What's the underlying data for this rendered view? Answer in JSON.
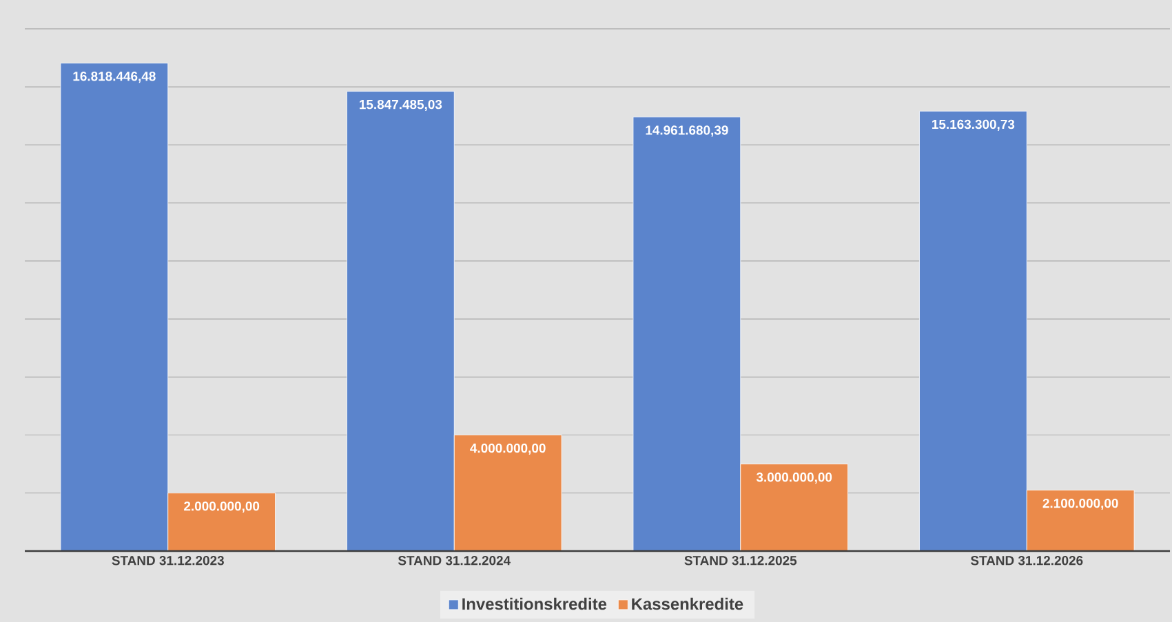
{
  "chart_data": {
    "type": "bar",
    "categories": [
      "STAND 31.12.2023",
      "STAND 31.12.2024",
      "STAND 31.12.2025",
      "STAND 31.12.2026"
    ],
    "series": [
      {
        "name": "Investitionskredite",
        "color": "#5b84cc",
        "values": [
          16818446.48,
          15847485.03,
          14961680.39,
          15163300.73
        ],
        "value_labels": [
          "16.818.446,48",
          "15.847.485,03",
          "14.961.680,39",
          "15.163.300,73"
        ]
      },
      {
        "name": "Kassenkredite",
        "color": "#eb8a4a",
        "values": [
          2000000,
          4000000,
          3000000,
          2100000
        ],
        "value_labels": [
          "2.000.000,00",
          "4.000.000,00",
          "3.000.000,00",
          "2.100.000,00"
        ]
      }
    ],
    "tick_labels": "x",
    "grid": "y",
    "legend": "bottom"
  }
}
